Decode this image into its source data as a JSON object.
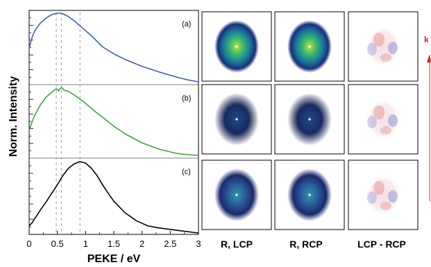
{
  "chart_data": {
    "type": "line",
    "xlabel": "PEKE / eV",
    "ylabel": "Norm. Intensity",
    "xlim": [
      0,
      3
    ],
    "x_ticks": [
      "0",
      "0.5",
      "1",
      "1.5",
      "2",
      "2.5",
      "3"
    ],
    "reference_lines_x": [
      0.48,
      0.57,
      0.9
    ],
    "grid": false,
    "panels": [
      {
        "tag": "(a)",
        "color": "#3a5fb4",
        "x": [
          0,
          0.05,
          0.1,
          0.2,
          0.3,
          0.4,
          0.5,
          0.55,
          0.6,
          0.7,
          0.8,
          0.9,
          1.0,
          1.1,
          1.2,
          1.3,
          1.5,
          1.7,
          2.0,
          2.3,
          2.6,
          2.8,
          3.0
        ],
        "y": [
          0.5,
          0.65,
          0.75,
          0.86,
          0.93,
          0.98,
          1.0,
          1.0,
          0.99,
          0.95,
          0.89,
          0.82,
          0.75,
          0.68,
          0.6,
          0.52,
          0.42,
          0.34,
          0.24,
          0.16,
          0.09,
          0.05,
          0.02
        ]
      },
      {
        "tag": "(b)",
        "color": "#3aa53a",
        "x": [
          0,
          0.05,
          0.1,
          0.2,
          0.3,
          0.4,
          0.48,
          0.52,
          0.57,
          0.62,
          0.7,
          0.8,
          0.9,
          1.0,
          1.1,
          1.2,
          1.3,
          1.5,
          1.7,
          2.0,
          2.3,
          2.6,
          2.8,
          3.0
        ],
        "y": [
          0.38,
          0.5,
          0.6,
          0.75,
          0.86,
          0.93,
          0.98,
          0.95,
          1.0,
          0.96,
          0.94,
          0.89,
          0.83,
          0.77,
          0.7,
          0.63,
          0.57,
          0.44,
          0.33,
          0.2,
          0.11,
          0.05,
          0.03,
          0.02
        ]
      },
      {
        "tag": "(c)",
        "color": "#000000",
        "x": [
          0,
          0.05,
          0.1,
          0.2,
          0.3,
          0.4,
          0.5,
          0.6,
          0.7,
          0.8,
          0.9,
          1.0,
          1.1,
          1.2,
          1.3,
          1.4,
          1.5,
          1.7,
          1.9,
          2.1,
          2.3,
          2.5,
          2.7,
          2.9,
          3.0
        ],
        "y": [
          0.1,
          0.14,
          0.2,
          0.32,
          0.43,
          0.55,
          0.67,
          0.8,
          0.9,
          0.96,
          0.99,
          0.97,
          0.9,
          0.8,
          0.67,
          0.55,
          0.44,
          0.28,
          0.17,
          0.1,
          0.07,
          0.05,
          0.03,
          0.01,
          0.0
        ]
      }
    ]
  },
  "image_panels": {
    "columns": [
      "R, LCP",
      "R, RCP",
      "LCP - RCP"
    ],
    "rows": 3
  },
  "arrow_label": "k",
  "colors": {
    "blue": "#3a5fb4",
    "green": "#3aa53a",
    "black": "#000000",
    "arrow": "#e02020",
    "diff_red": "#d84040",
    "diff_blue": "#4050c8"
  }
}
